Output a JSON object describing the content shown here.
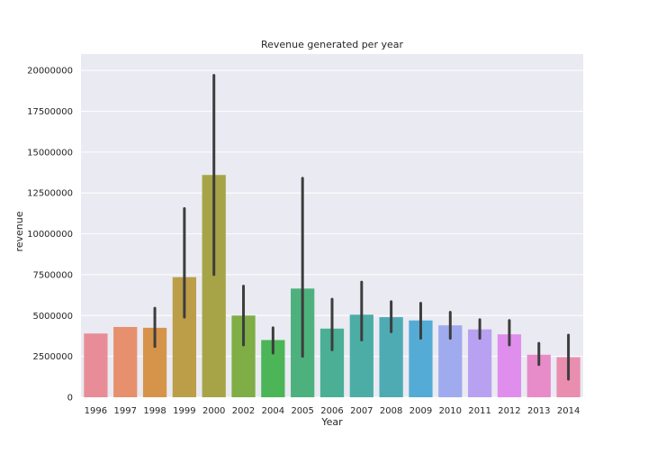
{
  "chart_data": {
    "type": "bar",
    "title": "Revenue generated per year",
    "xlabel": "Year",
    "ylabel": "revenue",
    "categories": [
      "1996",
      "1997",
      "1998",
      "1999",
      "2000",
      "2002",
      "2004",
      "2005",
      "2006",
      "2007",
      "2008",
      "2009",
      "2010",
      "2011",
      "2012",
      "2013",
      "2014"
    ],
    "values": [
      3900000,
      4300000,
      4250000,
      7350000,
      13600000,
      5000000,
      3500000,
      6650000,
      4200000,
      5050000,
      4900000,
      4700000,
      4400000,
      4150000,
      3850000,
      2600000,
      2450000
    ],
    "error_low": [
      3900000,
      4300000,
      3100000,
      4900000,
      7500000,
      3200000,
      2700000,
      2500000,
      2900000,
      3500000,
      4000000,
      3600000,
      3600000,
      3600000,
      3200000,
      2000000,
      1100000
    ],
    "error_high": [
      3900000,
      4300000,
      5450000,
      11550000,
      19700000,
      6800000,
      4250000,
      13400000,
      6000000,
      7050000,
      5850000,
      5750000,
      5200000,
      4750000,
      4700000,
      3300000,
      3800000
    ],
    "colors": [
      "#e88d97",
      "#e6906d",
      "#d5944a",
      "#bc9d48",
      "#a6a446",
      "#7fad46",
      "#4bb557",
      "#4db17e",
      "#4baf95",
      "#4cada6",
      "#4eabb3",
      "#54acd6",
      "#a0aaee",
      "#b8a1f1",
      "#e08eed",
      "#e88bc9",
      "#e98eae"
    ],
    "yticks": [
      "0",
      "2500000",
      "5000000",
      "7500000",
      "10000000",
      "12500000",
      "15000000",
      "17500000",
      "20000000"
    ],
    "ylim": [
      0,
      21000000
    ],
    "grid": true
  }
}
